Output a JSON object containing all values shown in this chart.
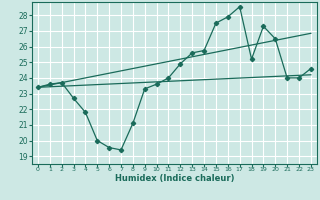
{
  "xlabel": "Humidex (Indice chaleur)",
  "bg_color": "#cde8e4",
  "grid_color": "#ffffff",
  "line_color": "#1a6b5a",
  "xlim": [
    -0.5,
    23.5
  ],
  "ylim": [
    18.5,
    28.85
  ],
  "xticks": [
    0,
    1,
    2,
    3,
    4,
    5,
    6,
    7,
    8,
    9,
    10,
    11,
    12,
    13,
    14,
    15,
    16,
    17,
    18,
    19,
    20,
    21,
    22,
    23
  ],
  "yticks": [
    19,
    20,
    21,
    22,
    23,
    24,
    25,
    26,
    27,
    28
  ],
  "curve1_x": [
    0,
    1,
    2,
    3,
    4,
    5,
    6,
    7,
    8,
    9,
    10,
    11,
    12,
    13,
    14,
    15,
    16,
    17,
    18,
    19,
    20,
    21,
    22,
    23
  ],
  "curve1_y": [
    23.4,
    23.6,
    23.7,
    22.7,
    21.8,
    20.0,
    19.55,
    19.4,
    21.1,
    23.3,
    23.6,
    24.0,
    24.9,
    25.6,
    25.75,
    27.5,
    27.9,
    28.55,
    25.2,
    27.3,
    26.5,
    24.0,
    24.0,
    24.6
  ],
  "curve2_x": [
    0,
    23
  ],
  "curve2_y": [
    23.4,
    24.2
  ],
  "curve3_x": [
    0,
    23
  ],
  "curve3_y": [
    23.4,
    26.85
  ]
}
